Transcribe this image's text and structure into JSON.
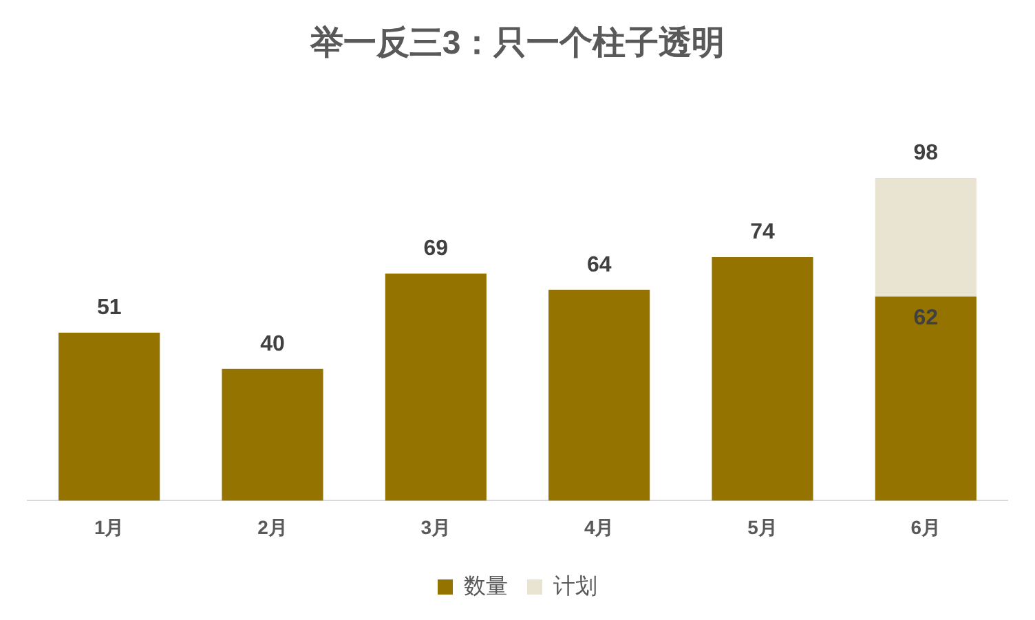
{
  "chart_data": {
    "type": "bar",
    "title": "举一反三3：只一个柱子透明",
    "categories": [
      "1月",
      "2月",
      "3月",
      "4月",
      "5月",
      "6月"
    ],
    "series": [
      {
        "name": "数量",
        "color": "#957300",
        "values": [
          51,
          40,
          69,
          64,
          74,
          62
        ]
      },
      {
        "name": "计划",
        "color": "#e9e4d2",
        "values": [
          null,
          null,
          null,
          null,
          null,
          98
        ]
      }
    ],
    "data_labels": true,
    "legend": "bottom",
    "grid": false
  }
}
